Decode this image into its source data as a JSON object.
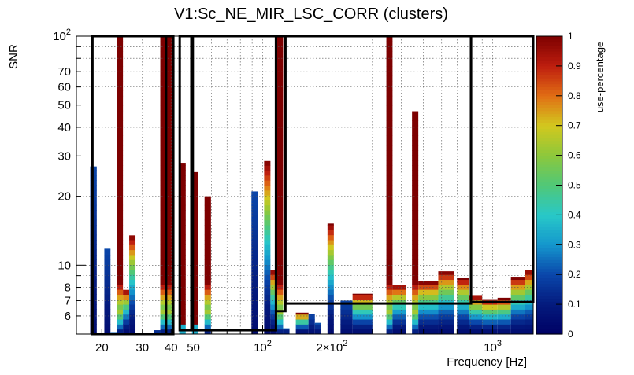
{
  "chart_data": {
    "type": "heatmap",
    "title": "V1:Sc_NE_MIR_LSC_CORR (clusters)",
    "xlabel": "Frequency [Hz]",
    "ylabel": "SNR",
    "xscale": "log",
    "yscale": "log",
    "xlim": [
      15.5,
      1500
    ],
    "ylim": [
      5,
      100
    ],
    "grid": true,
    "x_ticks": [
      {
        "v": 20,
        "label": "20"
      },
      {
        "v": 30,
        "label": "30"
      },
      {
        "v": 40,
        "label": "40"
      },
      {
        "v": 50,
        "label": "50"
      },
      {
        "v": 100,
        "label": "10^2"
      },
      {
        "v": 200,
        "label": "2×10^2"
      },
      {
        "v": 1000,
        "label": "10^3"
      }
    ],
    "y_ticks": [
      {
        "v": 6,
        "label": "6"
      },
      {
        "v": 7,
        "label": "7"
      },
      {
        "v": 8,
        "label": "8"
      },
      {
        "v": 10,
        "label": "10"
      },
      {
        "v": 20,
        "label": "20"
      },
      {
        "v": 30,
        "label": "30"
      },
      {
        "v": 40,
        "label": "40"
      },
      {
        "v": 50,
        "label": "50"
      },
      {
        "v": 60,
        "label": "60"
      },
      {
        "v": 70,
        "label": "70"
      },
      {
        "v": 100,
        "label": "10^2"
      }
    ],
    "colorbar": {
      "label": "use-percentage",
      "range": [
        0,
        1
      ],
      "ticks": [
        "0",
        "0.1",
        "0.2",
        "0.3",
        "0.4",
        "0.5",
        "0.6",
        "0.7",
        "0.8",
        "0.9",
        "1"
      ]
    },
    "columns": [
      {
        "f0": 17.8,
        "f1": 19.0,
        "snr_max": 27,
        "profile": "blue"
      },
      {
        "f0": 20.5,
        "f1": 21.8,
        "snr_max": 11.8,
        "profile": "blue"
      },
      {
        "f0": 21.8,
        "f1": 23.2,
        "snr_max": 5.1,
        "profile": "blue"
      },
      {
        "f0": 23.2,
        "f1": 24.7,
        "snr_max": 100,
        "profile": "red_with_green"
      },
      {
        "f0": 24.7,
        "f1": 26.3,
        "snr_max": 7.8,
        "profile": "mixed"
      },
      {
        "f0": 26.3,
        "f1": 28.0,
        "snr_max": 13.5,
        "profile": "mixed"
      },
      {
        "f0": 33.7,
        "f1": 35.9,
        "snr_max": 5.2,
        "profile": "blue"
      },
      {
        "f0": 35.9,
        "f1": 38.3,
        "snr_max": 100,
        "profile": "red_with_green"
      },
      {
        "f0": 38.3,
        "f1": 40.8,
        "snr_max": 100,
        "profile": "red_with_green"
      },
      {
        "f0": 43.4,
        "f1": 46.3,
        "snr_max": 28,
        "profile": "red"
      },
      {
        "f0": 49.3,
        "f1": 52.5,
        "snr_max": 25.5,
        "profile": "red"
      },
      {
        "f0": 55.9,
        "f1": 59.6,
        "snr_max": 20,
        "profile": "red_with_green"
      },
      {
        "f0": 59.6,
        "f1": 63.5,
        "snr_max": 5.0,
        "profile": "blue"
      },
      {
        "f0": 89.4,
        "f1": 95.2,
        "snr_max": 21,
        "profile": "blue"
      },
      {
        "f0": 101.5,
        "f1": 108.1,
        "snr_max": 28.5,
        "profile": "mixed"
      },
      {
        "f0": 108.1,
        "f1": 115.2,
        "snr_max": 9.5,
        "profile": "mixed"
      },
      {
        "f0": 115.2,
        "f1": 122.7,
        "snr_max": 100,
        "profile": "red_with_green"
      },
      {
        "f0": 122.7,
        "f1": 130.8,
        "snr_max": 5.3,
        "profile": "blue"
      },
      {
        "f0": 139.4,
        "f1": 148.5,
        "snr_max": 6.2,
        "profile": "mixed"
      },
      {
        "f0": 148.5,
        "f1": 158.2,
        "snr_max": 6.2,
        "profile": "mixed"
      },
      {
        "f0": 158.2,
        "f1": 168.6,
        "snr_max": 6.1,
        "profile": "blue"
      },
      {
        "f0": 168.6,
        "f1": 179.6,
        "snr_max": 5.6,
        "profile": "blue"
      },
      {
        "f0": 191.4,
        "f1": 203.9,
        "snr_max": 15.2,
        "profile": "mixed"
      },
      {
        "f0": 218,
        "f1": 246,
        "snr_max": 7.0,
        "profile": "blue"
      },
      {
        "f0": 246,
        "f1": 300,
        "snr_max": 7.5,
        "profile": "mixed"
      },
      {
        "f0": 345,
        "f1": 367,
        "snr_max": 100,
        "profile": "red_with_green"
      },
      {
        "f0": 367,
        "f1": 420,
        "snr_max": 8.2,
        "profile": "mixed"
      },
      {
        "f0": 446,
        "f1": 475,
        "snr_max": 47,
        "profile": "red_with_green"
      },
      {
        "f0": 475,
        "f1": 580,
        "snr_max": 8.5,
        "profile": "mixed"
      },
      {
        "f0": 580,
        "f1": 680,
        "snr_max": 9.4,
        "profile": "mixed"
      },
      {
        "f0": 700,
        "f1": 790,
        "snr_max": 8.8,
        "profile": "mixed"
      },
      {
        "f0": 790,
        "f1": 900,
        "snr_max": 7.4,
        "profile": "mixed"
      },
      {
        "f0": 900,
        "f1": 1050,
        "snr_max": 7.1,
        "profile": "mixed"
      },
      {
        "f0": 1050,
        "f1": 1200,
        "snr_max": 7.2,
        "profile": "mixed"
      },
      {
        "f0": 1200,
        "f1": 1380,
        "snr_max": 8.9,
        "profile": "mixed"
      },
      {
        "f0": 1380,
        "f1": 1500,
        "snr_max": 9.5,
        "profile": "mixed"
      }
    ],
    "boxes": [
      {
        "f0": 18.2,
        "f1": 38.0,
        "snr_max": 100,
        "snr_min": 5.0
      },
      {
        "f0": 38.0,
        "f1": 40.9,
        "snr_max": 100,
        "snr_min": 5.0
      },
      {
        "f0": 43.6,
        "f1": 49.0,
        "snr_max": 100,
        "snr_min": 5.2
      },
      {
        "f0": 49.7,
        "f1": 114.3,
        "snr_max": 100,
        "snr_min": 5.2
      },
      {
        "f0": 114.3,
        "f1": 125.5,
        "snr_max": 100,
        "snr_min": 6.3
      },
      {
        "f0": 125.5,
        "f1": 805,
        "snr_max": 100,
        "snr_min": 6.8
      },
      {
        "f0": 805,
        "f1": 1500,
        "snr_max": 100,
        "snr_min": 6.9
      }
    ]
  }
}
